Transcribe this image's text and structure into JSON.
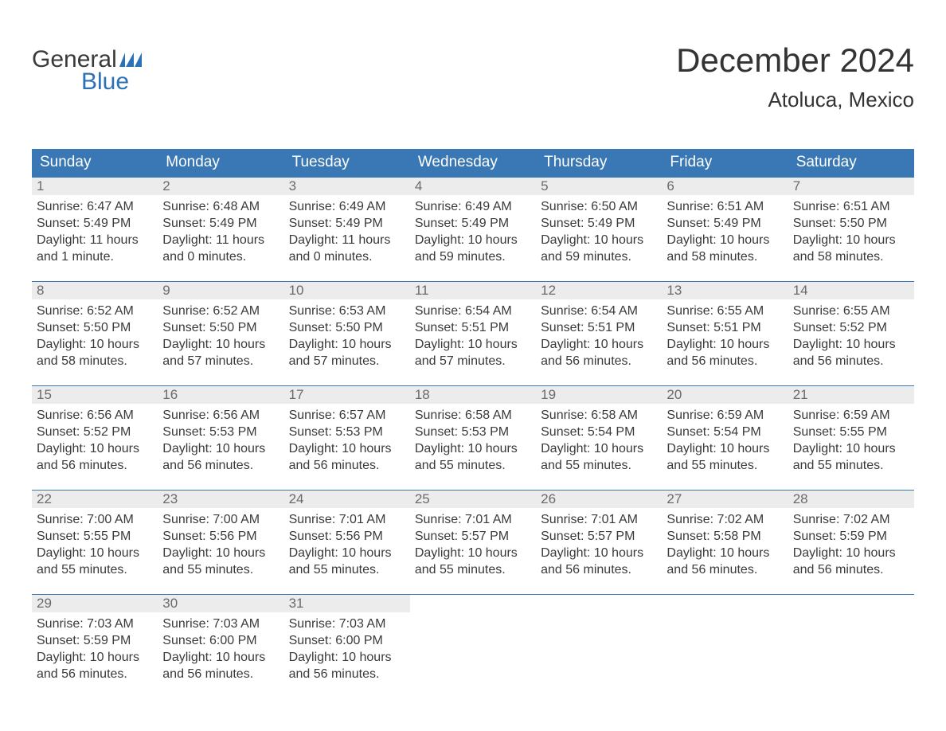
{
  "logo": {
    "word1": "General",
    "word2": "Blue",
    "text_color": "#3a3a3a",
    "accent_color": "#2b71b8",
    "flag_color": "#2b71b8"
  },
  "title": {
    "month_year": "December 2024",
    "location": "Atoluca, Mexico",
    "title_fontsize": 42,
    "location_fontsize": 26,
    "text_color": "#333333"
  },
  "calendar": {
    "header_bg": "#3a78b5",
    "header_text_color": "#ffffff",
    "week_border_color": "#3a78b5",
    "daynum_bg": "#ececec",
    "daynum_color": "#6a6a6a",
    "body_text_color": "#3a3a3a",
    "body_fontsize": 16,
    "daynum_fontsize": 17,
    "header_fontsize": 19,
    "columns": [
      "Sunday",
      "Monday",
      "Tuesday",
      "Wednesday",
      "Thursday",
      "Friday",
      "Saturday"
    ],
    "weeks": [
      [
        {
          "day": "1",
          "sunrise": "Sunrise: 6:47 AM",
          "sunset": "Sunset: 5:49 PM",
          "daylight1": "Daylight: 11 hours",
          "daylight2": "and 1 minute."
        },
        {
          "day": "2",
          "sunrise": "Sunrise: 6:48 AM",
          "sunset": "Sunset: 5:49 PM",
          "daylight1": "Daylight: 11 hours",
          "daylight2": "and 0 minutes."
        },
        {
          "day": "3",
          "sunrise": "Sunrise: 6:49 AM",
          "sunset": "Sunset: 5:49 PM",
          "daylight1": "Daylight: 11 hours",
          "daylight2": "and 0 minutes."
        },
        {
          "day": "4",
          "sunrise": "Sunrise: 6:49 AM",
          "sunset": "Sunset: 5:49 PM",
          "daylight1": "Daylight: 10 hours",
          "daylight2": "and 59 minutes."
        },
        {
          "day": "5",
          "sunrise": "Sunrise: 6:50 AM",
          "sunset": "Sunset: 5:49 PM",
          "daylight1": "Daylight: 10 hours",
          "daylight2": "and 59 minutes."
        },
        {
          "day": "6",
          "sunrise": "Sunrise: 6:51 AM",
          "sunset": "Sunset: 5:49 PM",
          "daylight1": "Daylight: 10 hours",
          "daylight2": "and 58 minutes."
        },
        {
          "day": "7",
          "sunrise": "Sunrise: 6:51 AM",
          "sunset": "Sunset: 5:50 PM",
          "daylight1": "Daylight: 10 hours",
          "daylight2": "and 58 minutes."
        }
      ],
      [
        {
          "day": "8",
          "sunrise": "Sunrise: 6:52 AM",
          "sunset": "Sunset: 5:50 PM",
          "daylight1": "Daylight: 10 hours",
          "daylight2": "and 58 minutes."
        },
        {
          "day": "9",
          "sunrise": "Sunrise: 6:52 AM",
          "sunset": "Sunset: 5:50 PM",
          "daylight1": "Daylight: 10 hours",
          "daylight2": "and 57 minutes."
        },
        {
          "day": "10",
          "sunrise": "Sunrise: 6:53 AM",
          "sunset": "Sunset: 5:50 PM",
          "daylight1": "Daylight: 10 hours",
          "daylight2": "and 57 minutes."
        },
        {
          "day": "11",
          "sunrise": "Sunrise: 6:54 AM",
          "sunset": "Sunset: 5:51 PM",
          "daylight1": "Daylight: 10 hours",
          "daylight2": "and 57 minutes."
        },
        {
          "day": "12",
          "sunrise": "Sunrise: 6:54 AM",
          "sunset": "Sunset: 5:51 PM",
          "daylight1": "Daylight: 10 hours",
          "daylight2": "and 56 minutes."
        },
        {
          "day": "13",
          "sunrise": "Sunrise: 6:55 AM",
          "sunset": "Sunset: 5:51 PM",
          "daylight1": "Daylight: 10 hours",
          "daylight2": "and 56 minutes."
        },
        {
          "day": "14",
          "sunrise": "Sunrise: 6:55 AM",
          "sunset": "Sunset: 5:52 PM",
          "daylight1": "Daylight: 10 hours",
          "daylight2": "and 56 minutes."
        }
      ],
      [
        {
          "day": "15",
          "sunrise": "Sunrise: 6:56 AM",
          "sunset": "Sunset: 5:52 PM",
          "daylight1": "Daylight: 10 hours",
          "daylight2": "and 56 minutes."
        },
        {
          "day": "16",
          "sunrise": "Sunrise: 6:56 AM",
          "sunset": "Sunset: 5:53 PM",
          "daylight1": "Daylight: 10 hours",
          "daylight2": "and 56 minutes."
        },
        {
          "day": "17",
          "sunrise": "Sunrise: 6:57 AM",
          "sunset": "Sunset: 5:53 PM",
          "daylight1": "Daylight: 10 hours",
          "daylight2": "and 56 minutes."
        },
        {
          "day": "18",
          "sunrise": "Sunrise: 6:58 AM",
          "sunset": "Sunset: 5:53 PM",
          "daylight1": "Daylight: 10 hours",
          "daylight2": "and 55 minutes."
        },
        {
          "day": "19",
          "sunrise": "Sunrise: 6:58 AM",
          "sunset": "Sunset: 5:54 PM",
          "daylight1": "Daylight: 10 hours",
          "daylight2": "and 55 minutes."
        },
        {
          "day": "20",
          "sunrise": "Sunrise: 6:59 AM",
          "sunset": "Sunset: 5:54 PM",
          "daylight1": "Daylight: 10 hours",
          "daylight2": "and 55 minutes."
        },
        {
          "day": "21",
          "sunrise": "Sunrise: 6:59 AM",
          "sunset": "Sunset: 5:55 PM",
          "daylight1": "Daylight: 10 hours",
          "daylight2": "and 55 minutes."
        }
      ],
      [
        {
          "day": "22",
          "sunrise": "Sunrise: 7:00 AM",
          "sunset": "Sunset: 5:55 PM",
          "daylight1": "Daylight: 10 hours",
          "daylight2": "and 55 minutes."
        },
        {
          "day": "23",
          "sunrise": "Sunrise: 7:00 AM",
          "sunset": "Sunset: 5:56 PM",
          "daylight1": "Daylight: 10 hours",
          "daylight2": "and 55 minutes."
        },
        {
          "day": "24",
          "sunrise": "Sunrise: 7:01 AM",
          "sunset": "Sunset: 5:56 PM",
          "daylight1": "Daylight: 10 hours",
          "daylight2": "and 55 minutes."
        },
        {
          "day": "25",
          "sunrise": "Sunrise: 7:01 AM",
          "sunset": "Sunset: 5:57 PM",
          "daylight1": "Daylight: 10 hours",
          "daylight2": "and 55 minutes."
        },
        {
          "day": "26",
          "sunrise": "Sunrise: 7:01 AM",
          "sunset": "Sunset: 5:57 PM",
          "daylight1": "Daylight: 10 hours",
          "daylight2": "and 56 minutes."
        },
        {
          "day": "27",
          "sunrise": "Sunrise: 7:02 AM",
          "sunset": "Sunset: 5:58 PM",
          "daylight1": "Daylight: 10 hours",
          "daylight2": "and 56 minutes."
        },
        {
          "day": "28",
          "sunrise": "Sunrise: 7:02 AM",
          "sunset": "Sunset: 5:59 PM",
          "daylight1": "Daylight: 10 hours",
          "daylight2": "and 56 minutes."
        }
      ],
      [
        {
          "day": "29",
          "sunrise": "Sunrise: 7:03 AM",
          "sunset": "Sunset: 5:59 PM",
          "daylight1": "Daylight: 10 hours",
          "daylight2": "and 56 minutes."
        },
        {
          "day": "30",
          "sunrise": "Sunrise: 7:03 AM",
          "sunset": "Sunset: 6:00 PM",
          "daylight1": "Daylight: 10 hours",
          "daylight2": "and 56 minutes."
        },
        {
          "day": "31",
          "sunrise": "Sunrise: 7:03 AM",
          "sunset": "Sunset: 6:00 PM",
          "daylight1": "Daylight: 10 hours",
          "daylight2": "and 56 minutes."
        },
        {
          "empty": true
        },
        {
          "empty": true
        },
        {
          "empty": true
        },
        {
          "empty": true
        }
      ]
    ]
  }
}
